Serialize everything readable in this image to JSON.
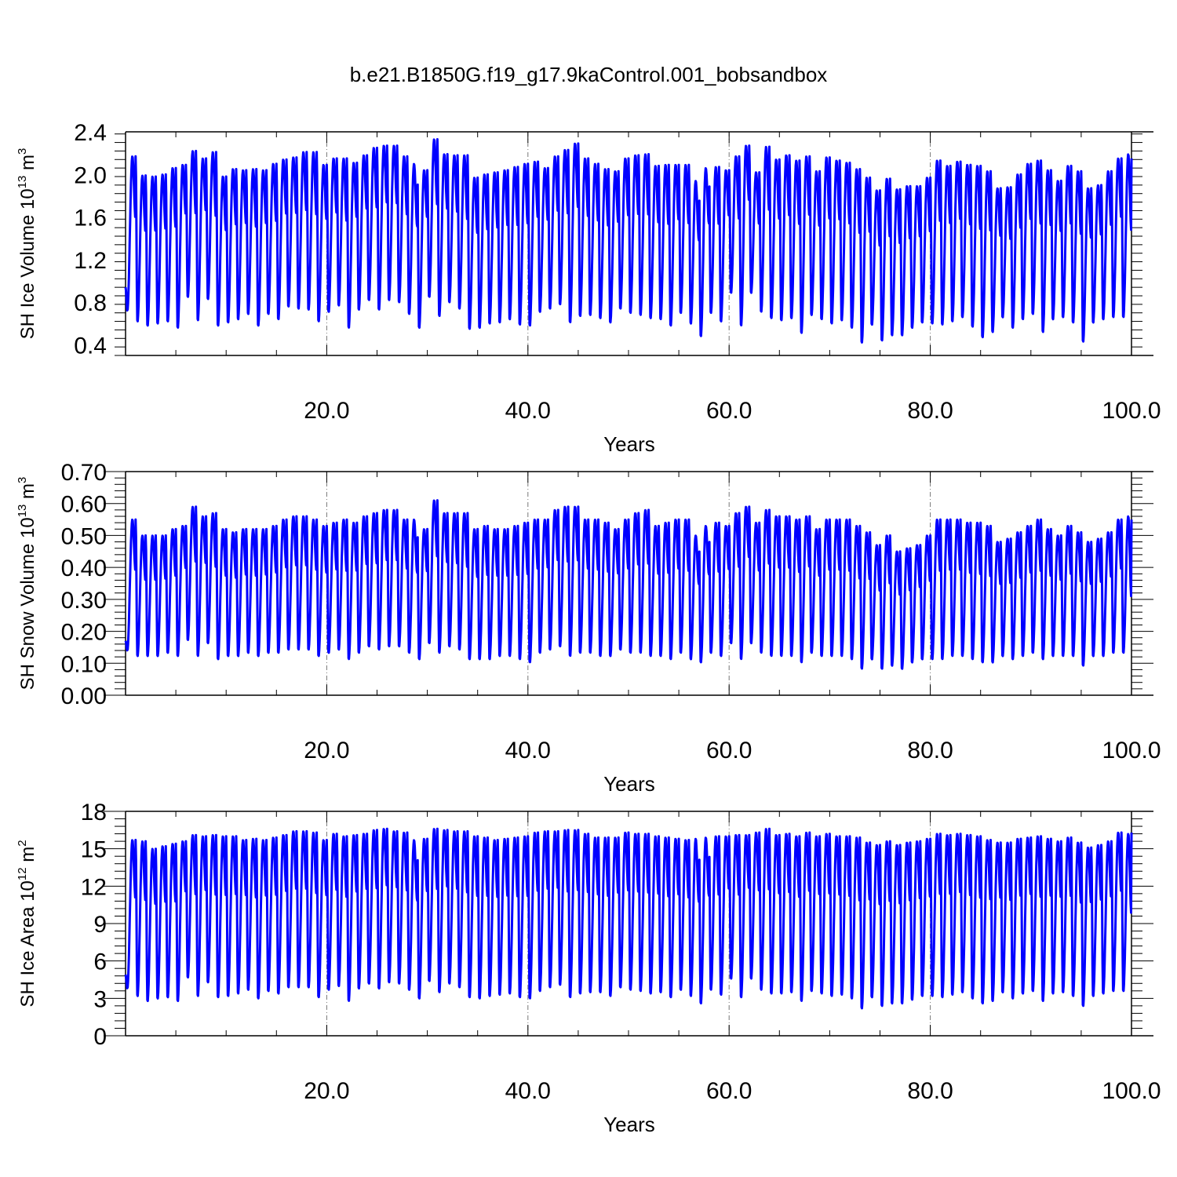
{
  "title": "b.e21.B1850G.f19_g17.9kaControl.001_bobsandbox",
  "colors": {
    "line": "#0000ff",
    "axis": "#000000",
    "grid": "#777777"
  },
  "chart_data": [
    {
      "type": "line",
      "ylabel": {
        "prefix": "SH Ice Volume 10",
        "exp": "13",
        "unit": " m",
        "unit_exp": "3"
      },
      "xlabel": "Years",
      "xlim": [
        0,
        100
      ],
      "ylim": [
        0.3,
        2.4
      ],
      "xticks": [
        "20.0",
        "40.0",
        "60.0",
        "80.0",
        "100.0"
      ],
      "yticks": [
        "0.4",
        "0.8",
        "1.2",
        "1.6",
        "2.0",
        "2.4"
      ],
      "grid": "dashed-vertical-at-major-x-ticks",
      "series": [
        {
          "peaks": [
            2.17,
            1.99,
            1.98,
            2.0,
            2.06,
            2.09,
            2.22,
            2.15,
            2.21,
            1.98,
            2.05,
            2.04,
            2.05,
            2.04,
            2.1,
            2.14,
            2.16,
            2.21,
            2.21,
            2.09,
            2.15,
            2.15,
            2.11,
            2.18,
            2.25,
            2.27,
            2.27,
            2.17,
            2.1,
            2.04,
            2.33,
            2.19,
            2.18,
            2.18,
            1.97,
            2.0,
            2.02,
            2.04,
            2.07,
            2.1,
            2.12,
            2.06,
            2.17,
            2.23,
            2.29,
            2.15,
            2.1,
            2.05,
            2.03,
            2.15,
            2.18,
            2.19,
            2.08,
            2.09,
            2.09,
            2.09,
            1.94,
            2.06,
            2.07,
            2.04,
            2.17,
            2.27,
            2.02,
            2.26,
            2.14,
            2.18,
            2.13,
            2.17,
            2.03,
            2.16,
            2.13,
            2.11,
            2.05,
            1.97,
            1.85,
            1.96,
            1.86,
            1.89,
            1.89,
            1.97,
            2.13,
            2.08,
            2.12,
            2.09,
            2.08,
            2.03,
            1.87,
            1.88,
            2.0,
            2.1,
            2.13,
            2.04,
            1.94,
            2.08,
            2.03,
            1.87,
            1.9,
            2.03,
            2.15,
            2.19
          ],
          "troughs": [
            0.72,
            0.61,
            0.57,
            0.59,
            0.61,
            0.55,
            0.84,
            0.62,
            0.82,
            0.57,
            0.6,
            0.63,
            0.68,
            0.57,
            0.68,
            0.63,
            0.75,
            0.73,
            0.72,
            0.61,
            0.7,
            0.76,
            0.55,
            0.72,
            0.81,
            0.72,
            0.81,
            0.79,
            0.68,
            0.55,
            0.84,
            0.66,
            0.79,
            0.73,
            0.54,
            0.55,
            0.59,
            0.6,
            0.63,
            0.58,
            0.57,
            0.7,
            0.73,
            0.77,
            0.6,
            0.66,
            0.67,
            0.64,
            0.6,
            0.73,
            0.69,
            0.67,
            0.64,
            0.63,
            0.57,
            0.69,
            0.59,
            0.47,
            0.69,
            0.61,
            0.88,
            0.57,
            0.88,
            0.7,
            0.64,
            0.62,
            0.64,
            0.5,
            0.67,
            0.63,
            0.59,
            0.62,
            0.55,
            0.41,
            0.58,
            0.43,
            0.48,
            0.48,
            0.55,
            0.6,
            0.59,
            0.58,
            0.61,
            0.65,
            0.56,
            0.46,
            0.51,
            0.65,
            0.55,
            0.63,
            0.68,
            0.51,
            0.63,
            0.65,
            0.6,
            0.42,
            0.6,
            0.63,
            0.65,
            0.65
          ],
          "start": 0.94,
          "end": 1.45
        }
      ]
    },
    {
      "type": "line",
      "ylabel": {
        "prefix": "SH Snow Volume 10",
        "exp": "13",
        "unit": " m",
        "unit_exp": "3"
      },
      "xlabel": "Years",
      "xlim": [
        0,
        100
      ],
      "ylim": [
        0,
        0.7
      ],
      "xticks": [
        "20.0",
        "40.0",
        "60.0",
        "80.0",
        "100.0"
      ],
      "yticks": [
        "0.00",
        "0.10",
        "0.20",
        "0.30",
        "0.40",
        "0.50",
        "0.60",
        "0.70"
      ],
      "grid": "dashed-vertical-at-major-x-ticks",
      "series": [
        {
          "peaks": [
            0.55,
            0.5,
            0.5,
            0.5,
            0.52,
            0.53,
            0.59,
            0.56,
            0.57,
            0.52,
            0.51,
            0.52,
            0.52,
            0.52,
            0.53,
            0.55,
            0.56,
            0.56,
            0.55,
            0.53,
            0.54,
            0.55,
            0.54,
            0.56,
            0.57,
            0.58,
            0.58,
            0.55,
            0.55,
            0.52,
            0.61,
            0.57,
            0.57,
            0.57,
            0.52,
            0.53,
            0.52,
            0.52,
            0.53,
            0.54,
            0.55,
            0.55,
            0.58,
            0.59,
            0.59,
            0.55,
            0.55,
            0.54,
            0.52,
            0.55,
            0.57,
            0.58,
            0.53,
            0.54,
            0.55,
            0.55,
            0.5,
            0.53,
            0.54,
            0.53,
            0.57,
            0.59,
            0.54,
            0.58,
            0.56,
            0.56,
            0.55,
            0.56,
            0.52,
            0.55,
            0.55,
            0.55,
            0.53,
            0.51,
            0.47,
            0.5,
            0.45,
            0.46,
            0.47,
            0.5,
            0.55,
            0.55,
            0.55,
            0.54,
            0.54,
            0.53,
            0.48,
            0.49,
            0.51,
            0.53,
            0.55,
            0.52,
            0.5,
            0.53,
            0.51,
            0.48,
            0.49,
            0.51,
            0.55,
            0.56
          ],
          "troughs": [
            0.14,
            0.12,
            0.12,
            0.12,
            0.13,
            0.12,
            0.17,
            0.12,
            0.16,
            0.11,
            0.12,
            0.12,
            0.13,
            0.12,
            0.13,
            0.13,
            0.14,
            0.14,
            0.14,
            0.12,
            0.13,
            0.14,
            0.11,
            0.13,
            0.15,
            0.14,
            0.15,
            0.15,
            0.13,
            0.11,
            0.16,
            0.13,
            0.15,
            0.14,
            0.11,
            0.11,
            0.11,
            0.12,
            0.12,
            0.11,
            0.1,
            0.13,
            0.14,
            0.15,
            0.12,
            0.13,
            0.13,
            0.12,
            0.12,
            0.14,
            0.13,
            0.13,
            0.12,
            0.12,
            0.11,
            0.13,
            0.11,
            0.1,
            0.13,
            0.12,
            0.16,
            0.11,
            0.16,
            0.13,
            0.12,
            0.12,
            0.12,
            0.1,
            0.13,
            0.12,
            0.12,
            0.12,
            0.11,
            0.08,
            0.11,
            0.08,
            0.09,
            0.08,
            0.1,
            0.11,
            0.11,
            0.11,
            0.12,
            0.12,
            0.11,
            0.1,
            0.1,
            0.12,
            0.11,
            0.12,
            0.13,
            0.11,
            0.12,
            0.12,
            0.12,
            0.09,
            0.12,
            0.12,
            0.13,
            0.13
          ],
          "start": 0.17,
          "end": 0.3
        }
      ]
    },
    {
      "type": "line",
      "ylabel": {
        "prefix": "SH Ice Area 10",
        "exp": "12",
        "unit": " m",
        "unit_exp": "2"
      },
      "xlabel": "Years",
      "xlim": [
        0,
        100
      ],
      "ylim": [
        0,
        18
      ],
      "xticks": [
        "20.0",
        "40.0",
        "60.0",
        "80.0",
        "100.0"
      ],
      "yticks": [
        "0",
        "3",
        "6",
        "9",
        "12",
        "15",
        "18"
      ],
      "grid": "dashed-vertical-at-major-x-ticks",
      "series": [
        {
          "peaks": [
            15.7,
            15.6,
            15.0,
            15.2,
            15.4,
            15.6,
            16.1,
            16.0,
            16.1,
            16.0,
            16.0,
            15.7,
            15.8,
            15.7,
            15.9,
            16.1,
            16.4,
            16.4,
            16.3,
            15.7,
            16.2,
            16.0,
            16.1,
            16.2,
            16.5,
            16.6,
            16.4,
            16.3,
            15.7,
            15.8,
            16.6,
            16.5,
            16.4,
            16.4,
            16.0,
            15.9,
            15.7,
            15.8,
            15.9,
            16.0,
            16.3,
            16.4,
            16.4,
            16.5,
            16.5,
            16.2,
            15.9,
            15.9,
            15.9,
            16.3,
            16.2,
            16.2,
            16.0,
            15.9,
            15.8,
            15.7,
            15.8,
            15.9,
            16.0,
            16.0,
            16.1,
            16.1,
            16.3,
            16.6,
            16.1,
            16.2,
            16.0,
            16.3,
            16.0,
            16.2,
            16.0,
            16.0,
            15.9,
            15.5,
            15.3,
            15.6,
            15.3,
            15.5,
            15.6,
            15.8,
            16.2,
            16.1,
            16.2,
            16.1,
            16.0,
            15.7,
            15.5,
            15.5,
            15.8,
            15.9,
            16.0,
            15.8,
            15.6,
            15.9,
            15.5,
            15.1,
            15.3,
            15.6,
            16.3,
            16.2
          ],
          "troughs": [
            3.8,
            3.1,
            2.7,
            2.9,
            3.0,
            2.7,
            4.6,
            3.1,
            4.2,
            3.0,
            3.1,
            3.3,
            3.6,
            2.9,
            3.5,
            3.3,
            3.8,
            3.8,
            3.8,
            3.0,
            3.6,
            3.9,
            2.7,
            3.7,
            4.1,
            3.7,
            4.2,
            4.1,
            3.6,
            2.9,
            4.3,
            3.4,
            4.1,
            3.8,
            3.0,
            2.9,
            3.1,
            3.2,
            3.3,
            3.0,
            2.9,
            3.5,
            3.8,
            4.0,
            3.0,
            3.3,
            3.4,
            3.4,
            3.1,
            3.8,
            3.6,
            3.5,
            3.3,
            3.4,
            3.0,
            3.6,
            3.1,
            2.5,
            3.6,
            3.2,
            4.5,
            3.0,
            4.5,
            3.6,
            3.3,
            3.3,
            3.4,
            2.7,
            3.5,
            3.3,
            3.1,
            3.2,
            2.9,
            2.1,
            3.0,
            2.3,
            2.5,
            2.5,
            2.8,
            3.1,
            3.1,
            3.0,
            3.2,
            3.4,
            2.9,
            2.5,
            2.7,
            3.4,
            2.9,
            3.3,
            3.5,
            2.7,
            3.3,
            3.4,
            3.1,
            2.3,
            3.1,
            3.3,
            3.5,
            3.5
          ],
          "start": 4.9,
          "end": 9.6
        }
      ]
    }
  ]
}
